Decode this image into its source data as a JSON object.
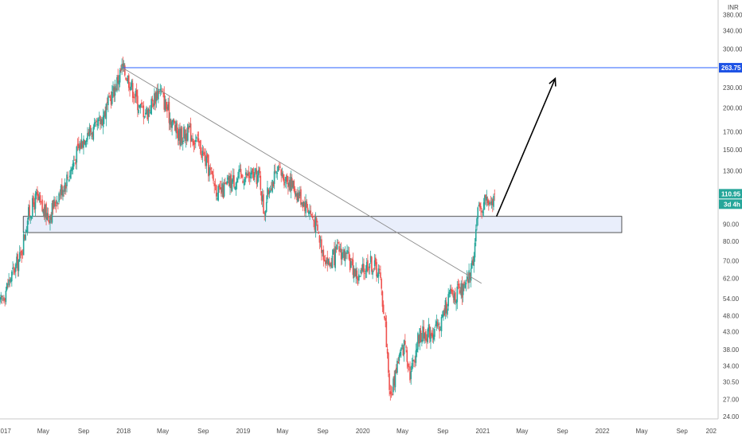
{
  "chart_data": {
    "type": "candlestick",
    "currency": "INR",
    "scale": "log",
    "ylim": [
      23,
      420
    ],
    "x_range": [
      "2016-12-20",
      "2022-12-20"
    ],
    "y_ticks": [
      "24.00",
      "27.00",
      "30.50",
      "34.00",
      "38.00",
      "43.00",
      "48.00",
      "54.00",
      "62.00",
      "70.00",
      "80.00",
      "90.00",
      "130.00",
      "150.00",
      "170.00",
      "200.00",
      "230.00",
      "300.00",
      "340.00",
      "380.00"
    ],
    "x_ticks": [
      {
        "label": "2017",
        "date": "2017-01-01"
      },
      {
        "label": "May",
        "date": "2017-05-01"
      },
      {
        "label": "Sep",
        "date": "2017-09-01"
      },
      {
        "label": "2018",
        "date": "2018-01-01"
      },
      {
        "label": "May",
        "date": "2018-05-01"
      },
      {
        "label": "Sep",
        "date": "2018-09-01"
      },
      {
        "label": "2019",
        "date": "2019-01-01"
      },
      {
        "label": "May",
        "date": "2019-05-01"
      },
      {
        "label": "Sep",
        "date": "2019-09-01"
      },
      {
        "label": "2020",
        "date": "2020-01-01"
      },
      {
        "label": "May",
        "date": "2020-05-01"
      },
      {
        "label": "Sep",
        "date": "2020-09-01"
      },
      {
        "label": "2021",
        "date": "2021-01-01"
      },
      {
        "label": "May",
        "date": "2021-05-01"
      },
      {
        "label": "Sep",
        "date": "2021-09-01"
      },
      {
        "label": "2022",
        "date": "2022-01-01"
      },
      {
        "label": "May",
        "date": "2022-05-01"
      },
      {
        "label": "Sep",
        "date": "2022-09-01"
      },
      {
        "label": "202",
        "date": "2022-12-20"
      }
    ],
    "price_path": [
      [
        "2016-12-20",
        52
      ],
      [
        "2017-01-20",
        62
      ],
      [
        "2017-02-20",
        72
      ],
      [
        "2017-03-15",
        95
      ],
      [
        "2017-04-10",
        108
      ],
      [
        "2017-05-01",
        98
      ],
      [
        "2017-05-20",
        96
      ],
      [
        "2017-06-20",
        112
      ],
      [
        "2017-07-20",
        128
      ],
      [
        "2017-08-15",
        150
      ],
      [
        "2017-09-10",
        170
      ],
      [
        "2017-10-10",
        172
      ],
      [
        "2017-11-10",
        200
      ],
      [
        "2017-12-05",
        230
      ],
      [
        "2017-12-28",
        264
      ],
      [
        "2018-01-20",
        240
      ],
      [
        "2018-02-20",
        200
      ],
      [
        "2018-03-15",
        195
      ],
      [
        "2018-04-20",
        230
      ],
      [
        "2018-05-20",
        190
      ],
      [
        "2018-06-20",
        165
      ],
      [
        "2018-07-20",
        170
      ],
      [
        "2018-08-20",
        155
      ],
      [
        "2018-09-20",
        130
      ],
      [
        "2018-10-20",
        110
      ],
      [
        "2018-11-20",
        120
      ],
      [
        "2018-12-20",
        125
      ],
      [
        "2019-01-20",
        125
      ],
      [
        "2019-02-20",
        125
      ],
      [
        "2019-03-05",
        98
      ],
      [
        "2019-03-25",
        120
      ],
      [
        "2019-04-20",
        128
      ],
      [
        "2019-05-20",
        122
      ],
      [
        "2019-06-20",
        110
      ],
      [
        "2019-07-20",
        100
      ],
      [
        "2019-08-10",
        90
      ],
      [
        "2019-09-01",
        75
      ],
      [
        "2019-09-20",
        68
      ],
      [
        "2019-10-20",
        76
      ],
      [
        "2019-11-20",
        70
      ],
      [
        "2019-12-20",
        62
      ],
      [
        "2020-01-20",
        70
      ],
      [
        "2020-02-20",
        65
      ],
      [
        "2020-03-10",
        45
      ],
      [
        "2020-03-25",
        27
      ],
      [
        "2020-04-15",
        35
      ],
      [
        "2020-05-10",
        40
      ],
      [
        "2020-05-25",
        32
      ],
      [
        "2020-06-20",
        42
      ],
      [
        "2020-07-20",
        43
      ],
      [
        "2020-08-20",
        44
      ],
      [
        "2020-09-20",
        55
      ],
      [
        "2020-10-20",
        56
      ],
      [
        "2020-11-10",
        58
      ],
      [
        "2020-11-30",
        68
      ],
      [
        "2020-12-15",
        95
      ],
      [
        "2021-01-10",
        108
      ],
      [
        "2021-01-25",
        100
      ],
      [
        "2021-02-08",
        110.95
      ]
    ],
    "support_zone": {
      "start": "2017-03-01",
      "end": "2022-03-01",
      "low": 85,
      "high": 95
    },
    "resistance_level": {
      "start": "2017-12-28",
      "value": 263.75,
      "label": "263.75"
    },
    "trendline": {
      "start": [
        "2017-12-28",
        264
      ],
      "end": [
        "2020-12-28",
        60
      ]
    },
    "projection_arrow": {
      "start": [
        "2021-02-12",
        95
      ],
      "end": [
        "2021-08-10",
        245
      ]
    },
    "last_price": {
      "value": 110.95,
      "label": "110.95",
      "timeframe_label": "3d 4h"
    },
    "colors": {
      "up": "#26a69a",
      "down": "#ef5350",
      "resistance": "#2962ff",
      "price_tag": "#26a69a",
      "resistance_tag": "#1e53e5",
      "zone_fill": "#e9eefb",
      "zone_stroke": "#2b2b2b",
      "trendline": "#8a8a8a",
      "arrow": "#000000"
    }
  }
}
